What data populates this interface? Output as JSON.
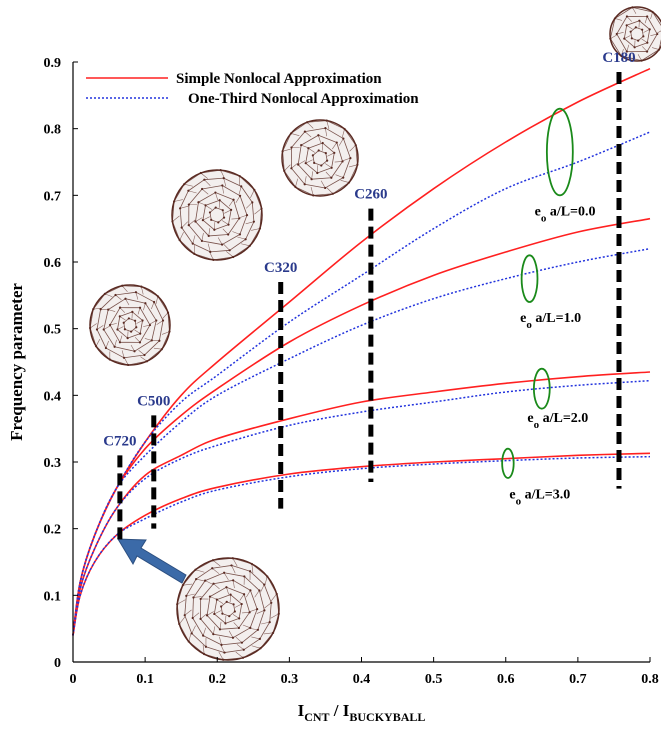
{
  "chart_data": {
    "type": "line",
    "xlabel": "I",
    "xlabel_sub1": "CNT",
    "xlabel_mid": " / I",
    "xlabel_sub2": "BUCKYBALL",
    "ylabel": "Frequency parameter",
    "xlim": [
      0,
      0.8
    ],
    "ylim": [
      0,
      0.9
    ],
    "x_ticks": [
      "0",
      "0.1",
      "0.2",
      "0.3",
      "0.4",
      "0.5",
      "0.6",
      "0.7",
      "0.8"
    ],
    "y_ticks": [
      "0",
      "0.1",
      "0.2",
      "0.3",
      "0.4",
      "0.5",
      "0.6",
      "0.7",
      "0.8",
      "0.9"
    ],
    "legend": [
      {
        "name": "Simple Nonlocal Approximation",
        "style": "solid",
        "color": "#ff2020"
      },
      {
        "name": "One-Third Nonlocal Approximation",
        "style": "dotted",
        "color": "#2233dd"
      }
    ],
    "legend_position": "top-left",
    "grid": false,
    "x_samples": [
      0.0,
      0.01,
      0.03,
      0.06,
      0.1,
      0.15,
      0.2,
      0.3,
      0.4,
      0.5,
      0.6,
      0.7,
      0.8
    ],
    "series": [
      {
        "name": "Simple Nonlocal Approximation",
        "group": "e_o a/L=0.0",
        "values": [
          0.04,
          0.12,
          0.19,
          0.26,
          0.33,
          0.4,
          0.45,
          0.54,
          0.63,
          0.71,
          0.78,
          0.84,
          0.89
        ]
      },
      {
        "name": "One-Third Nonlocal Approximation",
        "group": "e_o a/L=0.0",
        "values": [
          0.04,
          0.12,
          0.19,
          0.26,
          0.33,
          0.39,
          0.43,
          0.51,
          0.58,
          0.65,
          0.71,
          0.75,
          0.795
        ]
      },
      {
        "name": "Simple Nonlocal Approximation",
        "group": "e_o a/L=1.0",
        "values": [
          0.04,
          0.12,
          0.19,
          0.26,
          0.32,
          0.37,
          0.41,
          0.48,
          0.535,
          0.58,
          0.615,
          0.645,
          0.665
        ]
      },
      {
        "name": "One-Third Nonlocal Approximation",
        "group": "e_o a/L=1.0",
        "values": [
          0.04,
          0.12,
          0.19,
          0.26,
          0.31,
          0.36,
          0.4,
          0.455,
          0.505,
          0.545,
          0.575,
          0.6,
          0.62
        ]
      },
      {
        "name": "Simple Nonlocal Approximation",
        "group": "e_o a/L=2.0",
        "values": [
          0.04,
          0.11,
          0.17,
          0.23,
          0.28,
          0.31,
          0.335,
          0.365,
          0.39,
          0.405,
          0.418,
          0.428,
          0.435
        ]
      },
      {
        "name": "One-Third Nonlocal Approximation",
        "group": "e_o a/L=2.0",
        "values": [
          0.04,
          0.11,
          0.17,
          0.23,
          0.275,
          0.305,
          0.325,
          0.355,
          0.375,
          0.39,
          0.405,
          0.415,
          0.422
        ]
      },
      {
        "name": "Simple Nonlocal Approximation",
        "group": "e_o a/L=3.0",
        "values": [
          0.04,
          0.1,
          0.15,
          0.19,
          0.22,
          0.245,
          0.262,
          0.282,
          0.293,
          0.3,
          0.305,
          0.31,
          0.313
        ]
      },
      {
        "name": "One-Third Nonlocal Approximation",
        "group": "e_o a/L=3.0",
        "values": [
          0.04,
          0.1,
          0.15,
          0.19,
          0.215,
          0.24,
          0.258,
          0.278,
          0.29,
          0.297,
          0.302,
          0.306,
          0.308
        ]
      }
    ],
    "buckyball_markers": [
      {
        "label": "C720",
        "x": 0.065,
        "y_range": [
          0.18,
          0.31
        ]
      },
      {
        "label": "C500",
        "x": 0.112,
        "y_range": [
          0.2,
          0.37
        ]
      },
      {
        "label": "C320",
        "x": 0.288,
        "y_range": [
          0.23,
          0.57
        ]
      },
      {
        "label": "C260",
        "x": 0.413,
        "y_range": [
          0.27,
          0.68
        ]
      },
      {
        "label": "C180",
        "x": 0.757,
        "y_range": [
          0.26,
          0.885
        ]
      }
    ],
    "curve_labels": [
      {
        "prefix": "e",
        "sub": "o",
        "suffix": " a/L=0.0",
        "x": 0.64,
        "y": 0.67
      },
      {
        "prefix": "e",
        "sub": "o",
        "suffix": " a/L=1.0",
        "x": 0.62,
        "y": 0.51
      },
      {
        "prefix": "e",
        "sub": "o",
        "suffix": " a/L=2.0",
        "x": 0.63,
        "y": 0.36
      },
      {
        "prefix": "e",
        "sub": "o",
        "suffix": " a/L=3.0",
        "x": 0.605,
        "y": 0.245
      }
    ],
    "ovals": [
      {
        "x": 0.675,
        "y": 0.765,
        "rx": 0.018,
        "ry": 0.065
      },
      {
        "x": 0.633,
        "y": 0.575,
        "rx": 0.011,
        "ry": 0.035
      },
      {
        "x": 0.65,
        "y": 0.41,
        "rx": 0.011,
        "ry": 0.03
      },
      {
        "x": 0.603,
        "y": 0.298,
        "rx": 0.008,
        "ry": 0.022
      }
    ],
    "colors": {
      "simple": "#ff2020",
      "one_third": "#2233dd",
      "marker": "#000000",
      "oval": "#1a8a1a",
      "label": "#2a3a8c",
      "arrow": "#3b6aa8",
      "buckyball": "#5a2a22"
    }
  }
}
